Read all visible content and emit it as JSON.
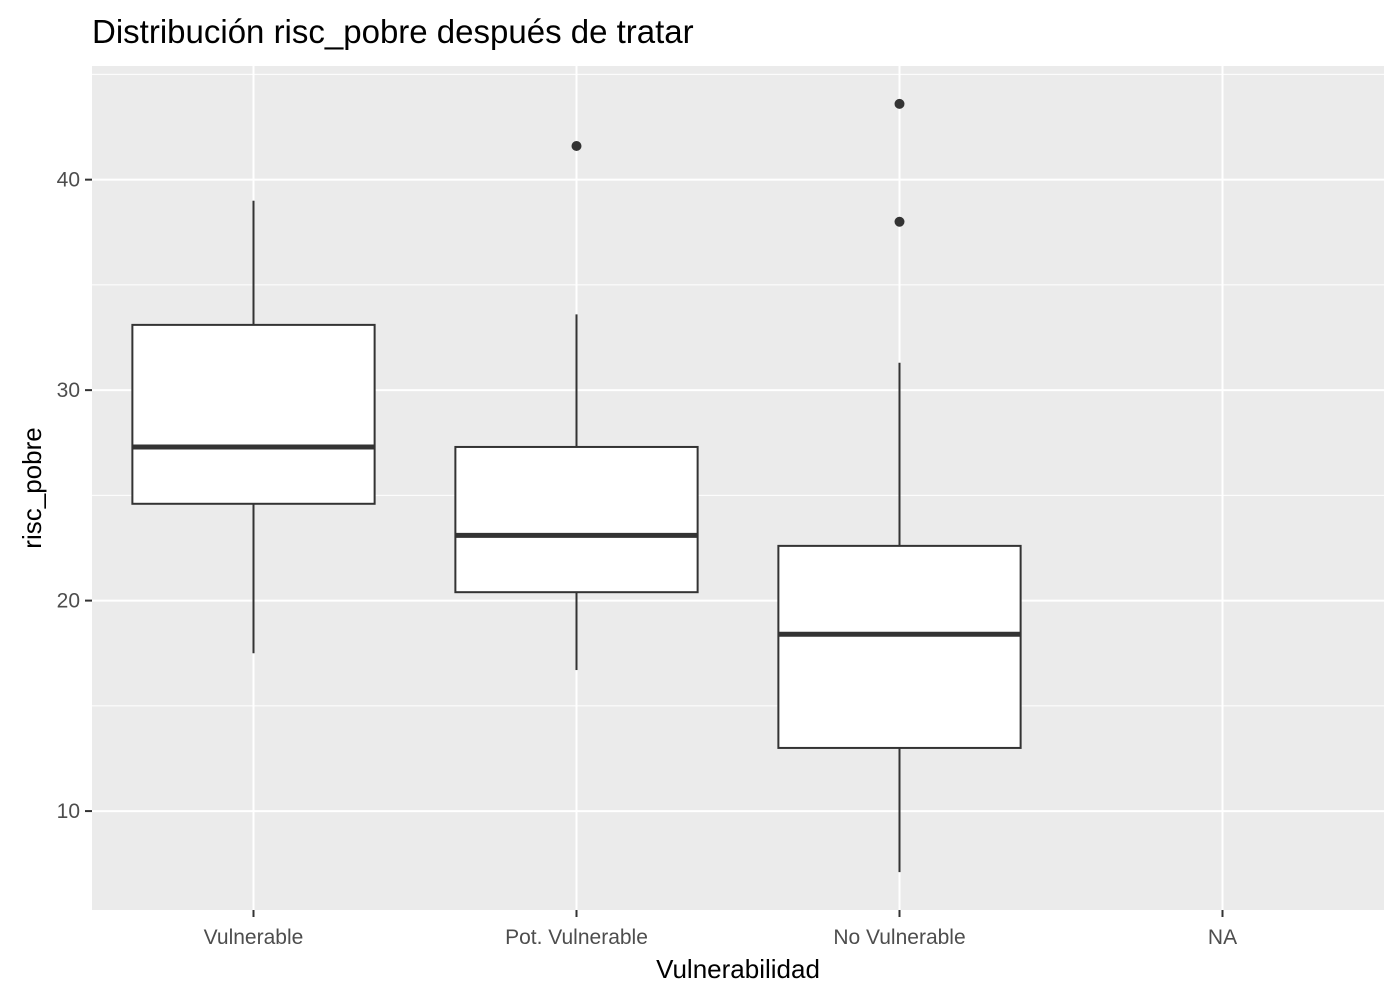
{
  "chart_data": {
    "type": "box",
    "title": "Distribución risc_pobre después de tratar",
    "xlabel": "Vulnerabilidad",
    "ylabel": "risc_pobre",
    "categories": [
      "Vulnerable",
      "Pot. Vulnerable",
      "No Vulnerable",
      "NA"
    ],
    "ylim": [
      5.3,
      45.4
    ],
    "yticks": [
      10,
      20,
      30,
      40
    ],
    "grid": true,
    "boxes": [
      {
        "category": "Vulnerable",
        "whisker_low": 17.5,
        "q1": 24.6,
        "median": 27.3,
        "q3": 33.1,
        "whisker_high": 39.0,
        "outliers": []
      },
      {
        "category": "Pot. Vulnerable",
        "whisker_low": 16.7,
        "q1": 20.4,
        "median": 23.1,
        "q3": 27.3,
        "whisker_high": 33.6,
        "outliers": [
          41.6
        ]
      },
      {
        "category": "No Vulnerable",
        "whisker_low": 7.1,
        "q1": 13.0,
        "median": 18.4,
        "q3": 22.6,
        "whisker_high": 31.3,
        "outliers": [
          43.6,
          38.0
        ]
      },
      {
        "category": "NA",
        "whisker_low": null,
        "q1": null,
        "median": null,
        "q3": null,
        "whisker_high": null,
        "outliers": []
      }
    ],
    "colors": {
      "panel_background": "#ebebeb",
      "grid": "#ffffff",
      "box_fill": "#ffffff",
      "box_line": "#333333",
      "tick_text": "#4d4d4d",
      "tick_mark": "#333333"
    }
  }
}
